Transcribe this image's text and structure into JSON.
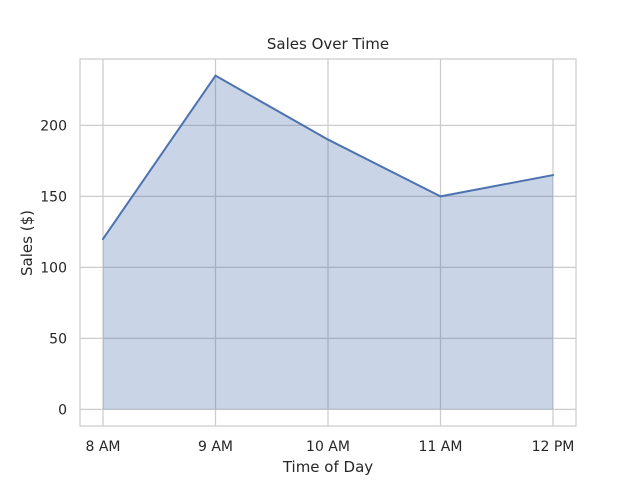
{
  "chart_data": {
    "type": "area",
    "title": "Sales Over Time",
    "xlabel": "Time of Day",
    "ylabel": "Sales ($)",
    "categories": [
      "8 AM",
      "9 AM",
      "10 AM",
      "11 AM",
      "12 PM"
    ],
    "values": [
      120,
      235,
      190,
      150,
      165
    ],
    "yticks": [
      0,
      50,
      100,
      150,
      200
    ],
    "ylim": [
      -11.75,
      246.75
    ],
    "grid": true,
    "legend": "none",
    "colors": {
      "line": "#4c72b0",
      "fill": "#c8d3e6",
      "grid": "#cccccc",
      "frame": "#cccccc",
      "text": "#262626"
    }
  }
}
